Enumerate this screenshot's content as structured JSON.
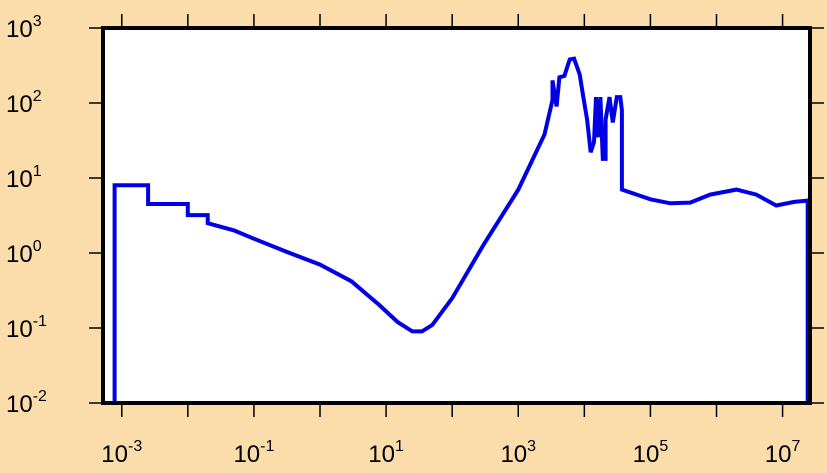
{
  "chart_data": {
    "type": "line",
    "step": true,
    "title": "",
    "xlabel": "",
    "ylabel": "",
    "x_scale": "log",
    "y_scale": "log",
    "xlim": [
      0.00052,
      26000000.0
    ],
    "ylim": [
      0.01,
      1000
    ],
    "grid": false,
    "colors": {
      "background": "#fbdcab",
      "plot_area": "#ffffff",
      "frame": "#000000",
      "series": "#0000e6"
    },
    "x_ticks": [
      {
        "value": 0.001,
        "base": "10",
        "exp": "-3"
      },
      {
        "value": 0.1,
        "base": "10",
        "exp": "-1"
      },
      {
        "value": 10,
        "base": "10",
        "exp": "1"
      },
      {
        "value": 1000,
        "base": "10",
        "exp": "3"
      },
      {
        "value": 100000,
        "base": "10",
        "exp": "5"
      },
      {
        "value": 10000000,
        "base": "10",
        "exp": "7"
      }
    ],
    "x_minor_ticks": [
      0.01,
      1,
      100,
      10000,
      1000000
    ],
    "y_ticks": [
      {
        "value": 0.01,
        "base": "10",
        "exp": "-2"
      },
      {
        "value": 0.1,
        "base": "10",
        "exp": "-1"
      },
      {
        "value": 1,
        "base": "10",
        "exp": "0"
      },
      {
        "value": 10,
        "base": "10",
        "exp": "1"
      },
      {
        "value": 100,
        "base": "10",
        "exp": "2"
      },
      {
        "value": 1000,
        "base": "10",
        "exp": "3"
      }
    ],
    "series": [
      {
        "points": [
          [
            0.00078,
            0.005
          ],
          [
            0.00078,
            8
          ],
          [
            0.0025,
            8
          ],
          [
            0.0025,
            4.5
          ],
          [
            0.01,
            4.5
          ],
          [
            0.01,
            3.2
          ],
          [
            0.02,
            3.2
          ],
          [
            0.02,
            2.5
          ],
          [
            0.05,
            2.0
          ],
          [
            0.1,
            1.55
          ],
          [
            0.3,
            1.05
          ],
          [
            1,
            0.7
          ],
          [
            3,
            0.42
          ],
          [
            8,
            0.2
          ],
          [
            15,
            0.12
          ],
          [
            25,
            0.09
          ],
          [
            35,
            0.09
          ],
          [
            50,
            0.11
          ],
          [
            100,
            0.25
          ],
          [
            300,
            1.3
          ],
          [
            1000,
            7
          ],
          [
            2500,
            38
          ],
          [
            3300,
            110
          ],
          [
            3300,
            200
          ],
          [
            3800,
            90
          ],
          [
            4200,
            220
          ],
          [
            5000,
            230
          ],
          [
            6000,
            380
          ],
          [
            7000,
            390
          ],
          [
            8500,
            240
          ],
          [
            9500,
            130
          ],
          [
            11000,
            60
          ],
          [
            12500,
            22
          ],
          [
            14000,
            30
          ],
          [
            15000,
            120
          ],
          [
            16000,
            35
          ],
          [
            17500,
            120
          ],
          [
            19000,
            18
          ],
          [
            21000,
            18
          ],
          [
            21000,
            60
          ],
          [
            24000,
            120
          ],
          [
            27000,
            55
          ],
          [
            31000,
            120
          ],
          [
            35000,
            120
          ],
          [
            37000,
            80
          ],
          [
            37000,
            7
          ],
          [
            100000,
            5.2
          ],
          [
            200000,
            4.6
          ],
          [
            400000,
            4.7
          ],
          [
            800000,
            6.0
          ],
          [
            2000000,
            7.0
          ],
          [
            4000000,
            6.0
          ],
          [
            8000000,
            4.3
          ],
          [
            15000000,
            4.8
          ],
          [
            24000000,
            5.0
          ],
          [
            24000000,
            0.005
          ]
        ]
      }
    ]
  }
}
